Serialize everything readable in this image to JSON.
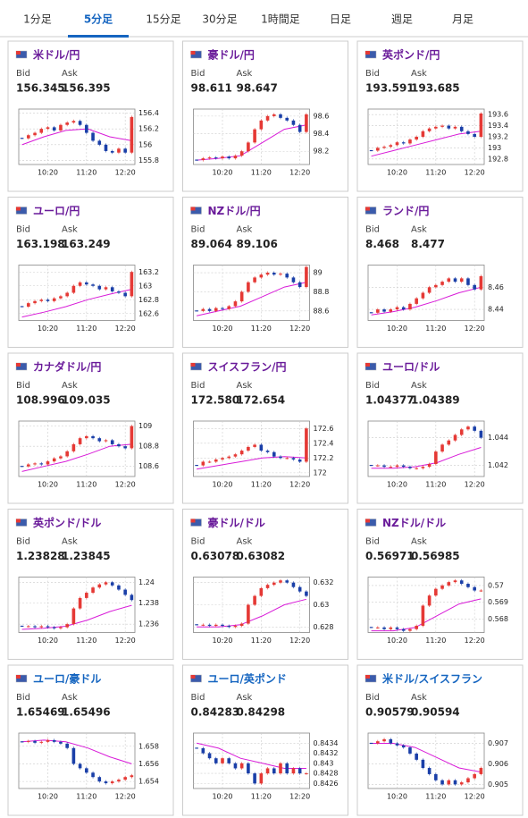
{
  "tabs": [
    "1分足",
    "5分足",
    "15分足",
    "30分足",
    "1時間足",
    "日足",
    "週足",
    "月足"
  ],
  "active_tab": 1,
  "labels": {
    "bid": "Bid",
    "ask": "Ask"
  },
  "xlim": [
    0,
    18
  ],
  "xticks": [
    {
      "value": 4.5,
      "label": "10:20"
    },
    {
      "value": 10.5,
      "label": "11:20"
    },
    {
      "value": 16.5,
      "label": "12:20"
    }
  ],
  "up_color": "#e53935",
  "down_color": "#1a3fa8",
  "ma_color": "#d81bd8",
  "cards": [
    {
      "name": "米ドル/円",
      "color": "#6a1b9a",
      "bid": "156.345",
      "ask": "156.395",
      "chart": {
        "ylim": [
          155.75,
          156.45
        ],
        "yticks": [
          155.8,
          156,
          156.2,
          156.4
        ],
        "closes": [
          156.08,
          156.12,
          156.15,
          156.2,
          156.22,
          156.18,
          156.25,
          156.28,
          156.3,
          156.25,
          156.15,
          156.05,
          156.0,
          155.92,
          155.9,
          155.95,
          155.9,
          156.35
        ],
        "ma": [
          156.0,
          156.1,
          156.18,
          156.2,
          156.1,
          156.05
        ]
      }
    },
    {
      "name": "豪ドル/円",
      "color": "#6a1b9a",
      "bid": "98.611",
      "ask": "98.647",
      "chart": {
        "ylim": [
          98.05,
          98.68
        ],
        "yticks": [
          98.2,
          98.4,
          98.6
        ],
        "closes": [
          98.1,
          98.12,
          98.13,
          98.12,
          98.14,
          98.12,
          98.15,
          98.2,
          98.3,
          98.45,
          98.55,
          98.6,
          98.62,
          98.58,
          98.55,
          98.5,
          98.42,
          98.62
        ],
        "ma": [
          98.1,
          98.12,
          98.15,
          98.3,
          98.45,
          98.5
        ]
      }
    },
    {
      "name": "英ポンド/円",
      "color": "#6a1b9a",
      "bid": "193.591",
      "ask": "193.685",
      "chart": {
        "ylim": [
          192.7,
          193.7
        ],
        "yticks": [
          192.8,
          193,
          193.2,
          193.4,
          193.6
        ],
        "closes": [
          192.95,
          193.0,
          193.02,
          193.05,
          193.1,
          193.08,
          193.15,
          193.2,
          193.3,
          193.35,
          193.38,
          193.4,
          193.35,
          193.38,
          193.3,
          193.25,
          193.2,
          193.62
        ],
        "ma": [
          192.85,
          192.95,
          193.05,
          193.15,
          193.25,
          193.3
        ]
      }
    },
    {
      "name": "ユーロ/円",
      "color": "#6a1b9a",
      "bid": "163.198",
      "ask": "163.249",
      "chart": {
        "ylim": [
          162.5,
          163.3
        ],
        "yticks": [
          162.6,
          162.8,
          163,
          163.2
        ],
        "closes": [
          162.7,
          162.75,
          162.78,
          162.8,
          162.78,
          162.82,
          162.85,
          162.9,
          163.0,
          163.05,
          163.02,
          163.0,
          162.95,
          162.98,
          162.92,
          162.9,
          162.85,
          163.2
        ],
        "ma": [
          162.55,
          162.62,
          162.7,
          162.8,
          162.88,
          162.95
        ]
      }
    },
    {
      "name": "NZドル/円",
      "color": "#6a1b9a",
      "bid": "89.064",
      "ask": "89.106",
      "chart": {
        "ylim": [
          88.5,
          89.08
        ],
        "yticks": [
          88.6,
          88.8,
          89
        ],
        "closes": [
          88.6,
          88.62,
          88.6,
          88.63,
          88.62,
          88.65,
          88.7,
          88.8,
          88.9,
          88.95,
          88.98,
          89.0,
          88.98,
          88.99,
          88.95,
          88.9,
          88.85,
          89.06
        ],
        "ma": [
          88.55,
          88.6,
          88.65,
          88.75,
          88.85,
          88.9
        ]
      }
    },
    {
      "name": "ランド/円",
      "color": "#6a1b9a",
      "bid": "8.468",
      "ask": "8.477",
      "chart": {
        "ylim": [
          8.43,
          8.48
        ],
        "yticks": [
          8.44,
          8.46
        ],
        "closes": [
          8.437,
          8.44,
          8.438,
          8.44,
          8.442,
          8.44,
          8.445,
          8.45,
          8.455,
          8.46,
          8.462,
          8.465,
          8.468,
          8.465,
          8.468,
          8.462,
          8.458,
          8.47
        ],
        "ma": [
          8.435,
          8.438,
          8.442,
          8.448,
          8.455,
          8.46
        ]
      }
    },
    {
      "name": "カナダドル/円",
      "color": "#6a1b9a",
      "bid": "108.996",
      "ask": "109.035",
      "chart": {
        "ylim": [
          108.5,
          109.05
        ],
        "yticks": [
          108.6,
          108.8,
          109
        ],
        "closes": [
          108.6,
          108.62,
          108.63,
          108.62,
          108.65,
          108.68,
          108.7,
          108.75,
          108.82,
          108.88,
          108.9,
          108.88,
          108.85,
          108.86,
          108.82,
          108.8,
          108.78,
          109.0
        ],
        "ma": [
          108.55,
          108.6,
          108.65,
          108.72,
          108.8,
          108.82
        ]
      }
    },
    {
      "name": "スイスフラン/円",
      "color": "#6a1b9a",
      "bid": "172.580",
      "ask": "172.654",
      "chart": {
        "ylim": [
          171.95,
          172.7
        ],
        "yticks": [
          172,
          172.2,
          172.4,
          172.6
        ],
        "closes": [
          172.1,
          172.15,
          172.15,
          172.18,
          172.2,
          172.22,
          172.25,
          172.3,
          172.35,
          172.38,
          172.3,
          172.28,
          172.22,
          172.2,
          172.2,
          172.18,
          172.15,
          172.6
        ],
        "ma": [
          172.05,
          172.1,
          172.15,
          172.2,
          172.22,
          172.2
        ]
      }
    },
    {
      "name": "ユーロ/ドル",
      "color": "#6a1b9a",
      "bid": "1.04377",
      "ask": "1.04389",
      "chart": {
        "ylim": [
          1.0412,
          1.0452
        ],
        "yticks": [
          1.042,
          1.044
        ],
        "closes": [
          1.042,
          1.042,
          1.0419,
          1.0419,
          1.042,
          1.0419,
          1.0418,
          1.0418,
          1.0419,
          1.0421,
          1.043,
          1.0435,
          1.0438,
          1.0442,
          1.0446,
          1.0448,
          1.0445,
          1.044
        ],
        "ma": [
          1.0418,
          1.0418,
          1.0419,
          1.0422,
          1.0428,
          1.0433
        ]
      }
    },
    {
      "name": "英ポンド/ドル",
      "color": "#6a1b9a",
      "bid": "1.23828",
      "ask": "1.23845",
      "chart": {
        "ylim": [
          1.2352,
          1.2405
        ],
        "yticks": [
          1.236,
          1.238,
          1.24
        ],
        "closes": [
          1.2358,
          1.2358,
          1.2357,
          1.2358,
          1.2357,
          1.2356,
          1.2357,
          1.236,
          1.2375,
          1.2385,
          1.239,
          1.2395,
          1.2398,
          1.24,
          1.2397,
          1.2393,
          1.2388,
          1.2383
        ],
        "ma": [
          1.2355,
          1.2356,
          1.2358,
          1.2364,
          1.2372,
          1.2378
        ]
      }
    },
    {
      "name": "豪ドル/ドル",
      "color": "#6a1b9a",
      "bid": "0.63078",
      "ask": "0.63082",
      "chart": {
        "ylim": [
          0.6275,
          0.6325
        ],
        "yticks": [
          0.628,
          0.63,
          0.632
        ],
        "closes": [
          0.6282,
          0.6282,
          0.6281,
          0.6282,
          0.6281,
          0.628,
          0.6281,
          0.6283,
          0.63,
          0.6308,
          0.6315,
          0.6318,
          0.632,
          0.6322,
          0.632,
          0.6316,
          0.6312,
          0.6308
        ],
        "ma": [
          0.628,
          0.628,
          0.6282,
          0.629,
          0.63,
          0.6305
        ]
      }
    },
    {
      "name": "NZドル/ドル",
      "color": "#6a1b9a",
      "bid": "0.56971",
      "ask": "0.56985",
      "chart": {
        "ylim": [
          0.5672,
          0.5705
        ],
        "yticks": [
          0.568,
          0.569,
          0.57
        ],
        "closes": [
          0.5675,
          0.5675,
          0.5674,
          0.5675,
          0.5674,
          0.5673,
          0.5674,
          0.5676,
          0.5688,
          0.5694,
          0.5698,
          0.57,
          0.5702,
          0.5703,
          0.5701,
          0.5699,
          0.5697,
          0.5697
        ],
        "ma": [
          0.5673,
          0.5673,
          0.5675,
          0.5682,
          0.5689,
          0.5692
        ]
      }
    },
    {
      "name": "ユーロ/豪ドル",
      "color": "#1565c0",
      "bid": "1.65469",
      "ask": "1.65496",
      "chart": {
        "ylim": [
          1.6532,
          1.6595
        ],
        "yticks": [
          1.654,
          1.656,
          1.658
        ],
        "closes": [
          1.6585,
          1.6586,
          1.6584,
          1.6585,
          1.6587,
          1.6585,
          1.6583,
          1.6578,
          1.656,
          1.6555,
          1.655,
          1.6545,
          1.654,
          1.6538,
          1.654,
          1.6542,
          1.6545,
          1.6547
        ],
        "ma": [
          1.6585,
          1.6587,
          1.6585,
          1.6578,
          1.6568,
          1.656
        ]
      }
    },
    {
      "name": "ユーロ/英ポンド",
      "color": "#1565c0",
      "bid": "0.84283",
      "ask": "0.84298",
      "chart": {
        "ylim": [
          0.8425,
          0.8436
        ],
        "yticks": [
          0.8426,
          0.8428,
          0.843,
          0.8432,
          0.8434
        ],
        "closes": [
          0.8433,
          0.8432,
          0.8431,
          0.843,
          0.8431,
          0.843,
          0.8429,
          0.843,
          0.8428,
          0.8426,
          0.8428,
          0.8429,
          0.8428,
          0.843,
          0.8428,
          0.8429,
          0.8428,
          0.8428
        ],
        "ma": [
          0.8434,
          0.8433,
          0.8431,
          0.843,
          0.8429,
          0.8429
        ]
      }
    },
    {
      "name": "米ドル/スイスフラン",
      "color": "#1565c0",
      "bid": "0.90579",
      "ask": "0.90594",
      "chart": {
        "ylim": [
          0.9048,
          0.9075
        ],
        "yticks": [
          0.905,
          0.906,
          0.907
        ],
        "closes": [
          0.907,
          0.9071,
          0.9072,
          0.907,
          0.9069,
          0.9068,
          0.9065,
          0.9062,
          0.9058,
          0.9055,
          0.9052,
          0.905,
          0.9052,
          0.905,
          0.9051,
          0.9053,
          0.9055,
          0.9058
        ],
        "ma": [
          0.907,
          0.907,
          0.9068,
          0.9063,
          0.9058,
          0.9056
        ]
      }
    }
  ]
}
